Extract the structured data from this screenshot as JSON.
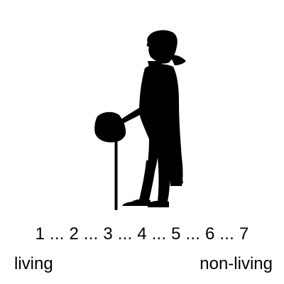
{
  "figure": {
    "description_icon": "gentleman-silhouette-icon",
    "fill": "#000000"
  },
  "scale": {
    "text": "1 ... 2 ... 3 ... 4 ... 5 ... 6 ... 7",
    "left_label": "living",
    "right_label": "non-living"
  }
}
